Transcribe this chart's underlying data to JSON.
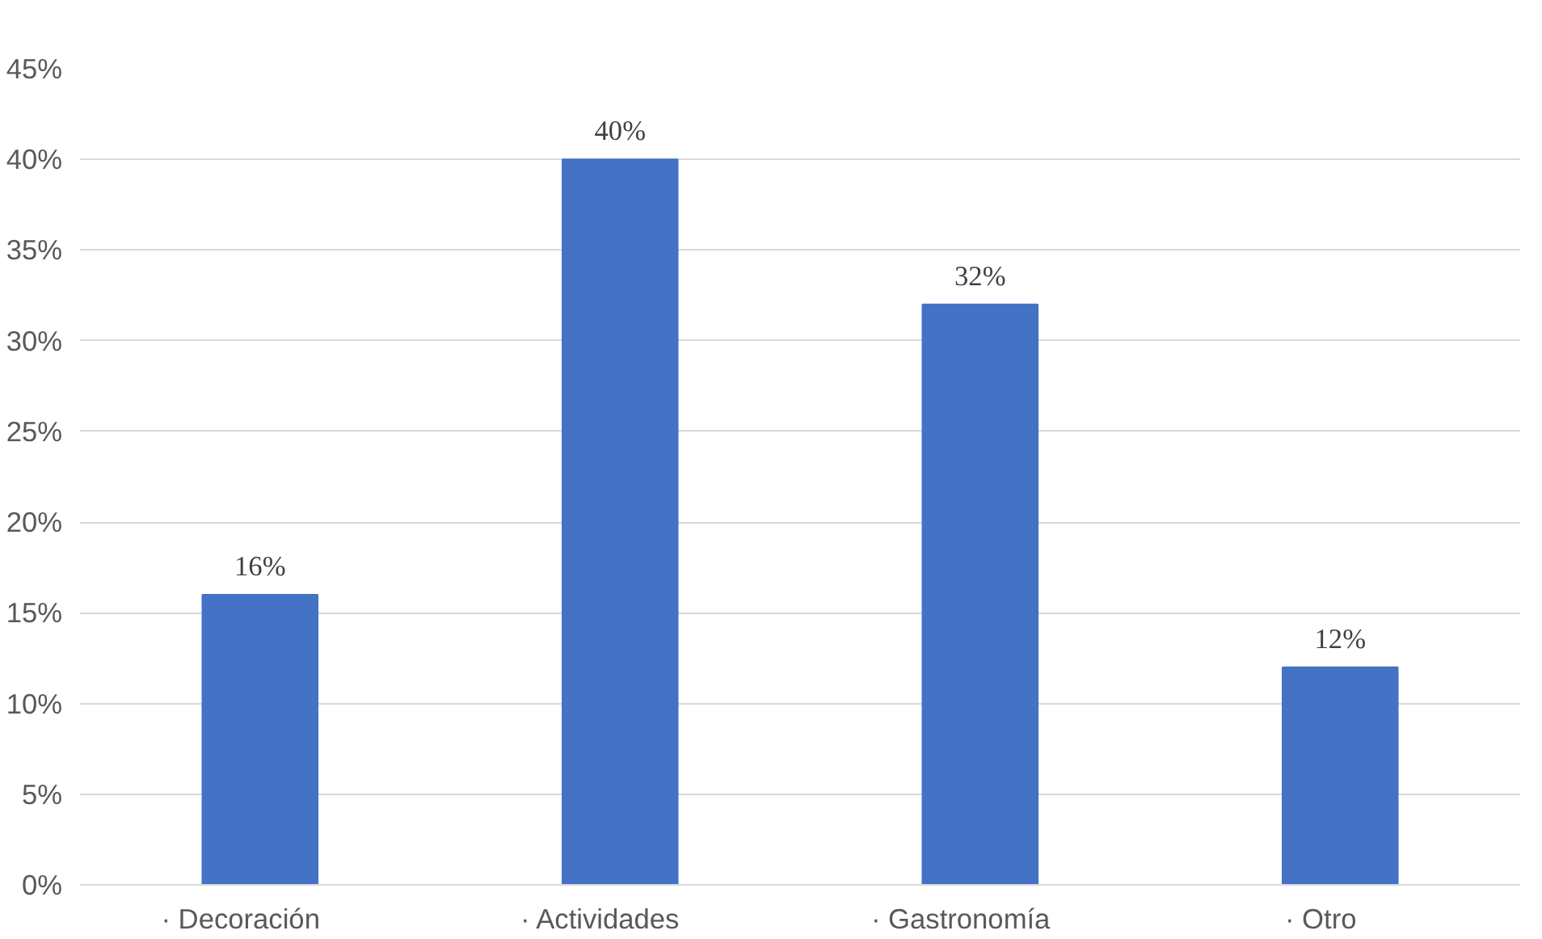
{
  "chart_data": {
    "type": "bar",
    "categories": [
      "·      Decoración",
      "·      Actividades",
      "·      Gastronomía",
      "·      Otro"
    ],
    "values": [
      16,
      40,
      32,
      12
    ],
    "value_labels": [
      "16%",
      "40%",
      "32%",
      "12%"
    ],
    "color": "#4472c4",
    "ylim": [
      0,
      45
    ],
    "yticks": [
      {
        "value": 0,
        "label": "0%"
      },
      {
        "value": 5,
        "label": "5%"
      },
      {
        "value": 10,
        "label": "10%"
      },
      {
        "value": 15,
        "label": "15%"
      },
      {
        "value": 20,
        "label": "20%"
      },
      {
        "value": 25,
        "label": "25%"
      },
      {
        "value": 30,
        "label": "30%"
      },
      {
        "value": 35,
        "label": "35%"
      },
      {
        "value": 40,
        "label": "40%"
      },
      {
        "value": 45,
        "label": "45%"
      }
    ],
    "grid": "y"
  }
}
